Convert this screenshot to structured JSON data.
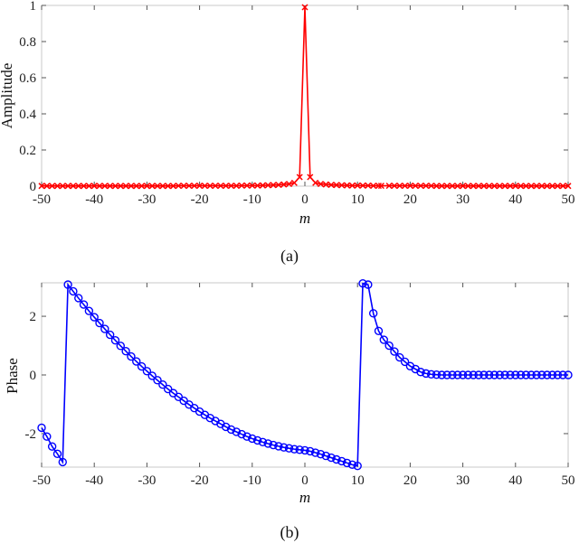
{
  "chart_data": [
    {
      "type": "line",
      "panel_caption": "(a)",
      "xlabel": "m",
      "ylabel": "Amplitude",
      "xlim": [
        -50,
        50
      ],
      "ylim": [
        0,
        1
      ],
      "xticks": [
        "-50",
        "-40",
        "-30",
        "-20",
        "-10",
        "0",
        "10",
        "20",
        "30",
        "40",
        "50"
      ],
      "yticks": [
        "0",
        "0.2",
        "0.4",
        "0.6",
        "0.8",
        "1"
      ],
      "marker": "x",
      "color": "#ff0000",
      "x": [
        -50,
        -49,
        -48,
        -47,
        -46,
        -45,
        -44,
        -43,
        -42,
        -41,
        -40,
        -39,
        -38,
        -37,
        -36,
        -35,
        -34,
        -33,
        -32,
        -31,
        -30,
        -29,
        -28,
        -27,
        -26,
        -25,
        -24,
        -23,
        -22,
        -21,
        -20,
        -19,
        -18,
        -17,
        -16,
        -15,
        -14,
        -13,
        -12,
        -11,
        -10,
        -9,
        -8,
        -7,
        -6,
        -5,
        -4,
        -3,
        -2,
        -1,
        0,
        1,
        2,
        3,
        4,
        5,
        6,
        7,
        8,
        9,
        10,
        11,
        12,
        13,
        14,
        14.5,
        16,
        17,
        18,
        19,
        20,
        21,
        22,
        23,
        24,
        25,
        26,
        27,
        28,
        29,
        30,
        31,
        32,
        33,
        34,
        35,
        36,
        37,
        38,
        39,
        40,
        41,
        42,
        43,
        44,
        45,
        46,
        47,
        48,
        49,
        50
      ],
      "y": [
        0.001,
        0.001,
        0.001,
        0.001,
        0.001,
        0.001,
        0.001,
        0.001,
        0.001,
        0.001,
        0.001,
        0.001,
        0.001,
        0.001,
        0.001,
        0.001,
        0.001,
        0.001,
        0.001,
        0.001,
        0.001,
        0.001,
        0.001,
        0.001,
        0.001,
        0.001,
        0.002,
        0.002,
        0.002,
        0.002,
        0.002,
        0.002,
        0.002,
        0.002,
        0.002,
        0.002,
        0.002,
        0.002,
        0.003,
        0.003,
        0.003,
        0.003,
        0.004,
        0.005,
        0.006,
        0.007,
        0.009,
        0.012,
        0.018,
        0.05,
        0.99,
        0.05,
        0.018,
        0.012,
        0.009,
        0.007,
        0.006,
        0.005,
        0.004,
        0.003,
        0.003,
        0.003,
        0.003,
        0.002,
        0.002,
        0.002,
        0.002,
        0.002,
        0.002,
        0.002,
        0.002,
        0.002,
        0.002,
        0.002,
        0.002,
        0.001,
        0.001,
        0.001,
        0.001,
        0.001,
        0.001,
        0.001,
        0.001,
        0.001,
        0.001,
        0.001,
        0.001,
        0.001,
        0.001,
        0.001,
        0.001,
        0.001,
        0.001,
        0.001,
        0.001,
        0.001,
        0.001,
        0.001,
        0.001,
        0.001,
        0.001
      ],
      "grid": false
    },
    {
      "type": "line",
      "panel_caption": "(b)",
      "xlabel": "m",
      "ylabel": "Phase",
      "xlim": [
        -50,
        50
      ],
      "ylim": [
        -3.1416,
        3.1416
      ],
      "xticks": [
        "-50",
        "-40",
        "-30",
        "-20",
        "-10",
        "0",
        "10",
        "20",
        "30",
        "40",
        "50"
      ],
      "yticks": [
        "-2",
        "0",
        "2"
      ],
      "marker": "o",
      "color": "#0000ff",
      "x": [
        -50,
        -49,
        -48,
        -47,
        -46,
        -45,
        -44,
        -43,
        -42,
        -41,
        -40,
        -39,
        -38,
        -37,
        -36,
        -35,
        -34,
        -33,
        -32,
        -31,
        -30,
        -29,
        -28,
        -27,
        -26,
        -25,
        -24,
        -23,
        -22,
        -21,
        -20,
        -19,
        -18,
        -17,
        -16,
        -15,
        -14,
        -13,
        -12,
        -11,
        -10,
        -9,
        -8,
        -7,
        -6,
        -5,
        -4,
        -3,
        -2,
        -1,
        0,
        1,
        2,
        3,
        4,
        5,
        6,
        7,
        8,
        9,
        10,
        11,
        12,
        13,
        14,
        15,
        16,
        17,
        18,
        19,
        20,
        21,
        22,
        23,
        24,
        25,
        26,
        27,
        28,
        29,
        30,
        31,
        32,
        33,
        34,
        35,
        36,
        37,
        38,
        39,
        40,
        41,
        42,
        43,
        44,
        45,
        46,
        47,
        48,
        49,
        50
      ],
      "y": [
        -1.8,
        -2.1,
        -2.44,
        -2.69,
        -2.97,
        3.08,
        2.85,
        2.62,
        2.4,
        2.18,
        1.97,
        1.77,
        1.57,
        1.37,
        1.18,
        0.99,
        0.81,
        0.63,
        0.46,
        0.29,
        0.13,
        -0.03,
        -0.18,
        -0.33,
        -0.48,
        -0.62,
        -0.75,
        -0.88,
        -1.01,
        -1.13,
        -1.25,
        -1.36,
        -1.47,
        -1.57,
        -1.67,
        -1.77,
        -1.86,
        -1.94,
        -2.02,
        -2.1,
        -2.17,
        -2.23,
        -2.29,
        -2.34,
        -2.39,
        -2.43,
        -2.47,
        -2.5,
        -2.53,
        -2.55,
        -2.57,
        -2.6,
        -2.65,
        -2.7,
        -2.76,
        -2.82,
        -2.88,
        -2.94,
        -3.0,
        -3.06,
        -3.1,
        3.12,
        3.08,
        2.1,
        1.5,
        1.2,
        1.0,
        0.8,
        0.6,
        0.45,
        0.3,
        0.2,
        0.1,
        0.05,
        0.02,
        0.01,
        0.0,
        0.0,
        0.0,
        0.0,
        0.0,
        0.0,
        0.0,
        0.0,
        0.0,
        0.0,
        0.0,
        0.0,
        0.0,
        0.0,
        0.0,
        0.0,
        0.0,
        0.0,
        0.0,
        0.0,
        0.0,
        0.0,
        0.0,
        0.0,
        0.0
      ],
      "grid": false
    }
  ]
}
